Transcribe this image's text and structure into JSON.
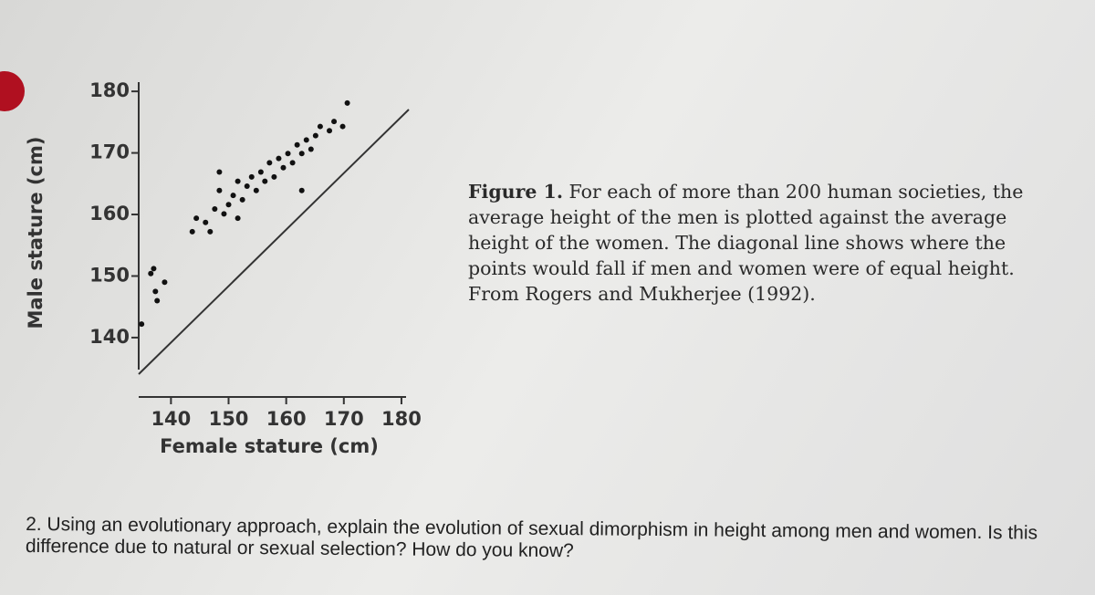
{
  "chart_data": {
    "type": "scatter",
    "x_label": "Female stature (cm)",
    "y_label": "Male stature (cm)",
    "xlim": [
      134.4,
      180.8
    ],
    "xticks": [
      140,
      150,
      160,
      170,
      180
    ],
    "ylim": [
      134.8,
      181.5
    ],
    "yticks": [
      140,
      150,
      160,
      170,
      180
    ],
    "color": "#111111",
    "x": [
      134.9,
      136.5,
      137.0,
      137.3,
      137.6,
      138.9,
      143.7,
      144.4,
      146.0,
      146.8,
      147.6,
      148.4,
      149.2,
      150.0,
      150.8,
      151.6,
      152.4,
      153.2,
      154.0,
      154.8,
      155.6,
      156.3,
      157.1,
      157.9,
      158.7,
      159.5,
      160.3,
      161.1,
      161.9,
      162.7,
      163.5,
      164.3,
      165.1,
      165.9,
      167.5,
      168.3,
      169.8,
      170.6,
      148.4,
      151.6,
      162.7
    ],
    "values": [
      142.2,
      150.4,
      151.2,
      147.5,
      146.0,
      149.0,
      157.2,
      159.4,
      158.7,
      157.2,
      160.9,
      163.9,
      160.1,
      161.6,
      163.1,
      165.4,
      162.4,
      164.6,
      166.1,
      163.9,
      166.9,
      165.4,
      168.4,
      166.1,
      169.1,
      167.6,
      169.9,
      168.4,
      171.3,
      169.9,
      172.1,
      170.6,
      172.8,
      174.3,
      173.6,
      175.1,
      174.3,
      178.1,
      166.9,
      159.4,
      163.9
    ]
  },
  "caption": {
    "label": "Figure 1.",
    "text": "For each of more than 200 human societies, the average height of the men is plotted against the average height of the women. The diagonal line shows where the points would fall if men and women were of equal height. From Rogers and Mukherjee (1992)."
  },
  "question": "2. Using an evolutionary approach, explain the evolution of sexual dimorphism in height among men and women. Is this difference due to natural or sexual selection? How do you know?"
}
